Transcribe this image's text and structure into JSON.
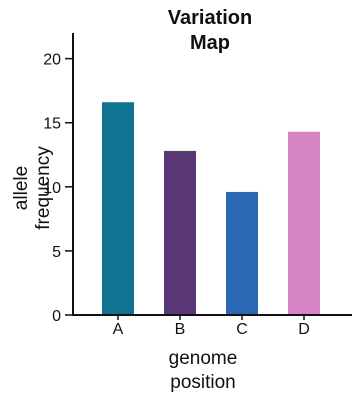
{
  "chart_data": {
    "type": "bar",
    "title_lines": [
      "Variation",
      "Map"
    ],
    "xlabel_lines": [
      "genome",
      "position"
    ],
    "ylabel_lines": [
      "allele",
      "frequency"
    ],
    "categories": [
      "A",
      "B",
      "C",
      "D"
    ],
    "values": [
      16.6,
      12.8,
      9.6,
      14.3
    ],
    "colors": [
      "#0e7492",
      "#5a3878",
      "#2b68b3",
      "#d684c4"
    ],
    "ylim": [
      0,
      22
    ],
    "yticks": [
      0,
      5,
      10,
      15,
      20
    ],
    "ytick_labels": [
      "0",
      "5",
      "10",
      "15",
      "20"
    ],
    "grid": false,
    "legend": "none"
  }
}
